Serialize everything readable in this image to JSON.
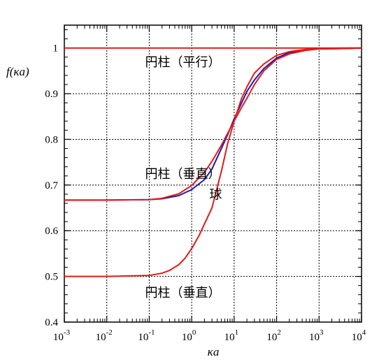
{
  "chart_data": {
    "type": "line",
    "xscale": "log",
    "xlim": [
      0.001,
      10000
    ],
    "ylim": [
      0.4,
      1.05
    ],
    "grid": true,
    "xlabel": "κa",
    "ylabel": "f(κa)",
    "x_ticks": [
      {
        "base": "10",
        "exp": "-3",
        "value": 0.001
      },
      {
        "base": "10",
        "exp": "-2",
        "value": 0.01
      },
      {
        "base": "10",
        "exp": "-1",
        "value": 0.1
      },
      {
        "base": "10",
        "exp": "0",
        "value": 1
      },
      {
        "base": "10",
        "exp": "1",
        "value": 10
      },
      {
        "base": "10",
        "exp": "2",
        "value": 100
      },
      {
        "base": "10",
        "exp": "3",
        "value": 1000
      },
      {
        "base": "10",
        "exp": "4",
        "value": 10000
      }
    ],
    "y_ticks": [
      {
        "label": "0.4",
        "value": 0.4
      },
      {
        "label": "0.5",
        "value": 0.5
      },
      {
        "label": "0.6",
        "value": 0.6
      },
      {
        "label": "0.7",
        "value": 0.7
      },
      {
        "label": "0.8",
        "value": 0.8
      },
      {
        "label": "0.9",
        "value": 0.9
      },
      {
        "label": "1",
        "value": 1.0
      }
    ],
    "series": [
      {
        "name": "円柱（平行）",
        "color": "#e41a1a",
        "x": [
          0.001,
          10000
        ],
        "y": [
          1.0,
          1.0
        ]
      },
      {
        "name": "円柱（垂直）",
        "color": "#e41a1a",
        "x": [
          0.001,
          0.01,
          0.1,
          0.2,
          0.5,
          1,
          2,
          3,
          5,
          7,
          10,
          15,
          20,
          30,
          50,
          100,
          200,
          500,
          1000,
          5000,
          10000
        ],
        "y": [
          0.667,
          0.667,
          0.668,
          0.671,
          0.681,
          0.699,
          0.728,
          0.752,
          0.787,
          0.813,
          0.84,
          0.87,
          0.89,
          0.92,
          0.95,
          0.975,
          0.987,
          0.995,
          0.998,
          0.999,
          1.0
        ]
      },
      {
        "name": "円柱（垂直）",
        "color": "#e41a1a",
        "x": [
          0.001,
          0.01,
          0.1,
          0.2,
          0.3,
          0.5,
          0.7,
          1,
          1.5,
          2,
          3,
          5,
          7,
          10,
          15,
          20,
          30,
          50,
          100,
          200,
          500,
          1000,
          5000,
          10000
        ],
        "y": [
          0.5,
          0.5,
          0.502,
          0.507,
          0.513,
          0.526,
          0.54,
          0.561,
          0.59,
          0.615,
          0.65,
          0.73,
          0.79,
          0.84,
          0.89,
          0.915,
          0.945,
          0.965,
          0.984,
          0.992,
          0.997,
          0.999,
          1.0,
          1.0
        ]
      },
      {
        "name": "球",
        "color": "#1a1ab4",
        "x": [
          0.001,
          0.01,
          0.1,
          0.2,
          0.5,
          1,
          2,
          3,
          5,
          7,
          10,
          15,
          20,
          30,
          50,
          100,
          200,
          500,
          1000,
          5000,
          10000
        ],
        "y": [
          0.667,
          0.667,
          0.668,
          0.67,
          0.677,
          0.69,
          0.712,
          0.735,
          0.78,
          0.81,
          0.845,
          0.88,
          0.905,
          0.93,
          0.955,
          0.978,
          0.99,
          0.996,
          0.998,
          0.999,
          1.0
        ]
      }
    ],
    "annotations": [
      {
        "text": "円柱（平行）",
        "series": 0
      },
      {
        "text": "円柱（垂直）",
        "series": 1
      },
      {
        "text": "球",
        "series": 3
      },
      {
        "text": "円柱（垂直）",
        "series": 2
      }
    ]
  }
}
